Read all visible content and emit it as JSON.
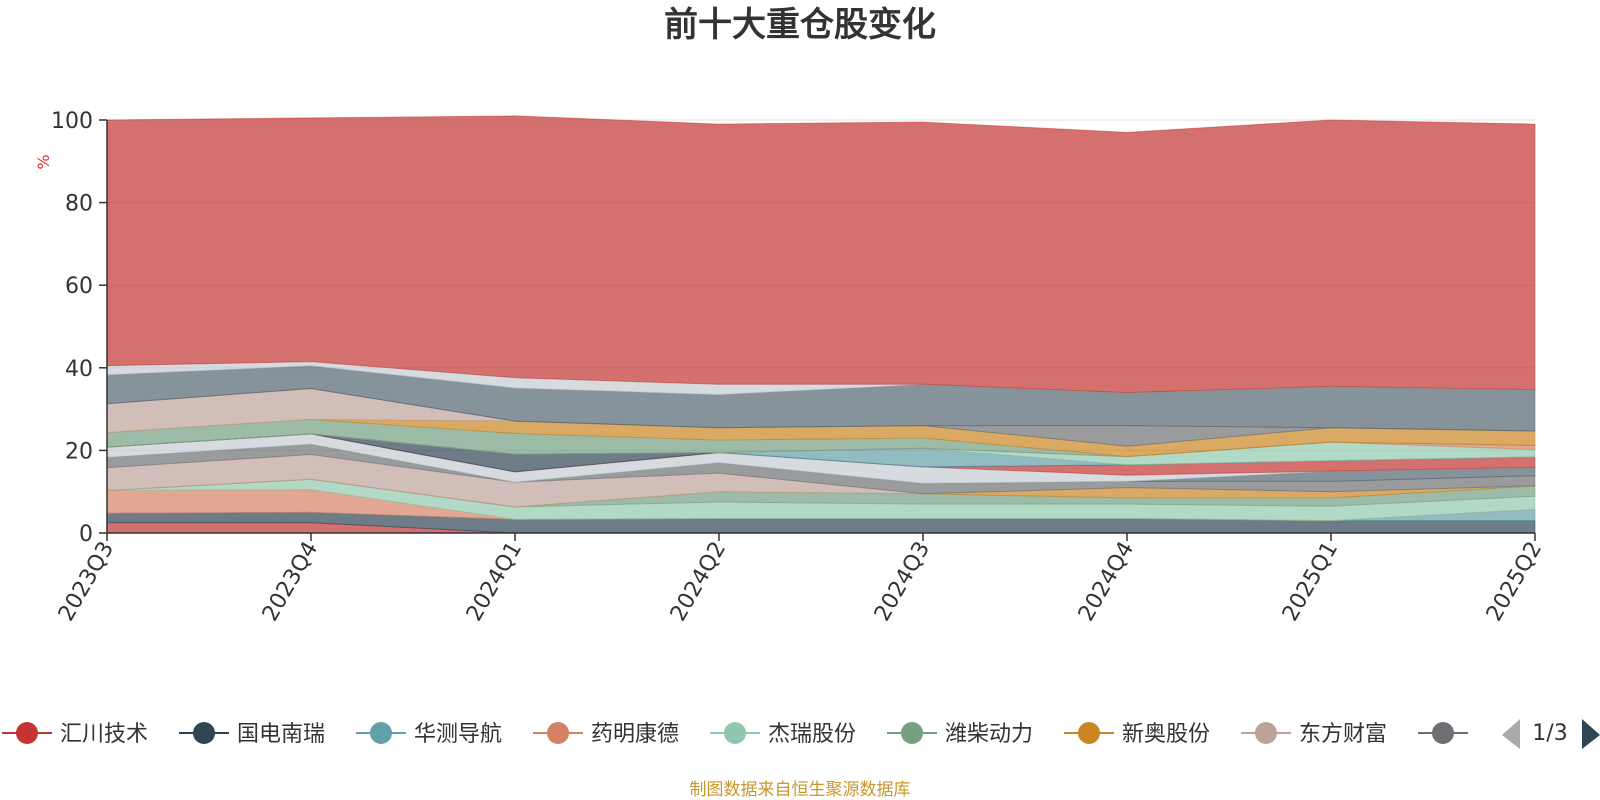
{
  "chart_data": {
    "type": "area",
    "stacked": true,
    "title": "前十大重仓股变化",
    "ylabel": "%",
    "ylim": [
      0,
      100
    ],
    "yticks": [
      0,
      20,
      40,
      60,
      80,
      100
    ],
    "grid": true,
    "categories": [
      "2023Q3",
      "2023Q4",
      "2024Q1",
      "2024Q2",
      "2024Q3",
      "2024Q4",
      "2025Q1",
      "2025Q2"
    ],
    "series": [
      {
        "name": "汇川技术",
        "color": "#c23531",
        "values": [
          2.5,
          2.5,
          0,
          0,
          0,
          0,
          0,
          0
        ]
      },
      {
        "name": "国电南瑞",
        "color": "#2f4554",
        "values": [
          2.3,
          2.5,
          3.3,
          3.5,
          3.5,
          3.5,
          3.0,
          3.0
        ]
      },
      {
        "name": "华测导航",
        "color": "#61a0a8",
        "values": [
          0,
          0,
          0,
          0,
          0,
          0,
          0,
          2.7
        ]
      },
      {
        "name": "药明康德",
        "color": "#d48265",
        "values": [
          5.5,
          5.5,
          0,
          0,
          0,
          0,
          0,
          0
        ]
      },
      {
        "name": "杰瑞股份",
        "color": "#91c7ae",
        "values": [
          0,
          2.5,
          3.0,
          4.0,
          3.5,
          3.5,
          3.5,
          3.2
        ]
      },
      {
        "name": "潍柴动力",
        "color": "#749f83",
        "values": [
          0,
          0,
          0,
          2.5,
          2.5,
          1.5,
          2.0,
          2.5
        ]
      },
      {
        "name": "新奥股份",
        "color": "#ca8622",
        "values": [
          0,
          0,
          0,
          0,
          0,
          2.5,
          1.5,
          0
        ]
      },
      {
        "name": "东方财富",
        "color": "#bda29a",
        "values": [
          5.5,
          6.0,
          6.0,
          4.5,
          0,
          0,
          0,
          0
        ]
      },
      {
        "name": "",
        "color": "#6e7074",
        "values": [
          2.5,
          2.5,
          0,
          2.5,
          2.5,
          1.5,
          2.5,
          2.5
        ]
      },
      {
        "name": "",
        "color": "#546570",
        "values": [
          0,
          0,
          0,
          0,
          0,
          0,
          2.5,
          2.0
        ]
      },
      {
        "name": "",
        "color": "#c4ccd3",
        "values": [
          2.5,
          2.5,
          2.5,
          2.5,
          4.0,
          1.5,
          0,
          0
        ]
      },
      {
        "name": "",
        "color": "#c23531",
        "values": [
          0,
          0,
          0,
          0,
          0,
          2.5,
          2.5,
          2.5
        ]
      },
      {
        "name": "",
        "color": "#2f4554",
        "values": [
          0,
          0,
          4.3,
          0,
          0,
          0,
          0,
          0
        ]
      },
      {
        "name": "",
        "color": "#61a0a8",
        "values": [
          0,
          0,
          0,
          0,
          4.5,
          0,
          0,
          0
        ]
      },
      {
        "name": "",
        "color": "#91c7ae",
        "values": [
          0,
          0,
          0,
          0,
          0,
          2.0,
          4.5,
          1.8
        ]
      },
      {
        "name": "",
        "color": "#d48265",
        "values": [
          0,
          0,
          0,
          0,
          0,
          0,
          0,
          1.0
        ]
      },
      {
        "name": "",
        "color": "#749f83",
        "values": [
          3.5,
          3.5,
          5.0,
          3.0,
          2.5,
          0,
          0,
          0
        ]
      },
      {
        "name": "",
        "color": "#ca8622",
        "values": [
          0,
          0,
          3.0,
          3.0,
          3.0,
          2.5,
          3.5,
          3.5
        ]
      },
      {
        "name": "",
        "color": "#bda29a",
        "values": [
          7.0,
          7.5,
          0,
          0,
          0,
          0,
          0,
          0
        ]
      },
      {
        "name": "",
        "color": "#6e7074",
        "values": [
          0,
          0,
          0,
          0,
          0,
          5.0,
          0,
          0
        ]
      },
      {
        "name": "",
        "color": "#546570",
        "values": [
          7.0,
          5.5,
          8.0,
          8.0,
          10.0,
          8.0,
          10.0,
          10.0
        ]
      },
      {
        "name": "",
        "color": "#c4ccd3",
        "values": [
          2.2,
          1.0,
          2.5,
          2.5,
          0,
          0,
          0,
          0
        ]
      },
      {
        "name": "",
        "color": "#c23531",
        "values": [
          59.5,
          59.0,
          63.4,
          63.0,
          63.5,
          63.0,
          64.5,
          64.3
        ]
      }
    ]
  },
  "legend": {
    "items": [
      {
        "name": "汇川技术",
        "color": "#c23531"
      },
      {
        "name": "国电南瑞",
        "color": "#2f4554"
      },
      {
        "name": "华测导航",
        "color": "#61a0a8"
      },
      {
        "name": "药明康德",
        "color": "#d48265"
      },
      {
        "name": "杰瑞股份",
        "color": "#91c7ae"
      },
      {
        "name": "潍柴动力",
        "color": "#749f83"
      },
      {
        "name": "新奥股份",
        "color": "#ca8622"
      },
      {
        "name": "东方财富",
        "color": "#bda29a"
      },
      {
        "name": "",
        "color": "#6e7074"
      }
    ],
    "page": "1/3",
    "prev_icon": "triangle-left-icon",
    "next_icon": "triangle-right-icon"
  },
  "source_note": "制图数据来自恒生聚源数据库"
}
